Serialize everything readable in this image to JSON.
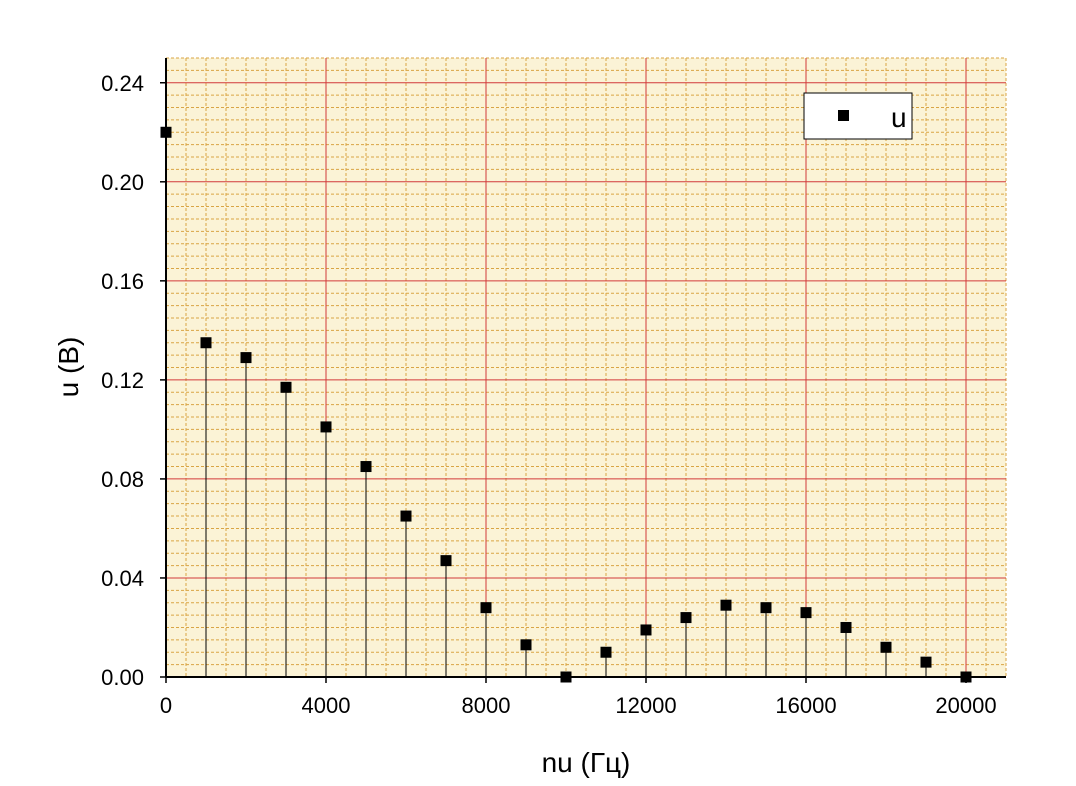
{
  "chart_data": {
    "type": "scatter",
    "style": "stem",
    "xlabel": "nu (Гц)",
    "ylabel": "u (В)",
    "xlim": [
      0,
      21000
    ],
    "ylim": [
      0,
      0.25
    ],
    "xticks": [
      0,
      4000,
      8000,
      12000,
      16000,
      20000
    ],
    "xtick_labels": [
      "0",
      "4000",
      "8000",
      "12000",
      "16000",
      "20000"
    ],
    "yticks": [
      0.0,
      0.04,
      0.08,
      0.12,
      0.16,
      0.2,
      0.24
    ],
    "ytick_labels": [
      "0.00",
      "0.04",
      "0.08",
      "0.12",
      "0.16",
      "0.20",
      "0.24"
    ],
    "grid": true,
    "major_grid_color": "#d23a3a",
    "minor_grid_color": "#d9a544",
    "plot_background": "#fbf3d6",
    "marker_color": "#000000",
    "legend": {
      "position": "top-right",
      "entries": [
        "u"
      ]
    },
    "series": [
      {
        "name": "u",
        "x": [
          0,
          1000,
          2000,
          3000,
          4000,
          5000,
          6000,
          7000,
          8000,
          9000,
          10000,
          11000,
          12000,
          13000,
          14000,
          15000,
          16000,
          17000,
          18000,
          19000,
          20000
        ],
        "y": [
          0.22,
          0.135,
          0.129,
          0.117,
          0.101,
          0.085,
          0.065,
          0.047,
          0.028,
          0.013,
          0.0,
          0.01,
          0.019,
          0.024,
          0.029,
          0.028,
          0.026,
          0.02,
          0.012,
          0.006,
          0.0
        ]
      }
    ]
  }
}
